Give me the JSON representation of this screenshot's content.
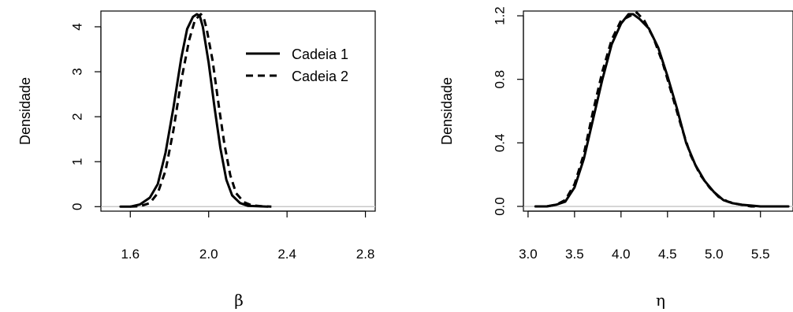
{
  "chart_data": [
    {
      "type": "line",
      "xlabel": "β",
      "ylabel": "Densidade",
      "xlim": [
        1.45,
        2.85
      ],
      "ylim": [
        -0.1,
        4.35
      ],
      "xticks": [
        "1.6",
        "2.0",
        "2.4",
        "2.8"
      ],
      "xtick_values": [
        1.6,
        2.0,
        2.4,
        2.8
      ],
      "yticks": [
        "0",
        "1",
        "2",
        "3",
        "4"
      ],
      "ytick_values": [
        0,
        1,
        2,
        3,
        4
      ],
      "baseline": 0,
      "legend": {
        "position": "top-right",
        "entries": [
          "Cadeia 1",
          "Cadeia 2"
        ]
      },
      "series": [
        {
          "name": "Cadeia 1",
          "style": "solid",
          "x": [
            1.55,
            1.6,
            1.65,
            1.7,
            1.74,
            1.78,
            1.82,
            1.86,
            1.89,
            1.92,
            1.94,
            1.955,
            1.97,
            2.0,
            2.03,
            2.06,
            2.09,
            2.12,
            2.16,
            2.2,
            2.25,
            2.3
          ],
          "y": [
            0.0,
            0.0,
            0.05,
            0.2,
            0.5,
            1.2,
            2.2,
            3.3,
            3.95,
            4.22,
            4.28,
            4.24,
            4.0,
            3.2,
            2.2,
            1.3,
            0.6,
            0.25,
            0.08,
            0.02,
            0.01,
            0.0
          ]
        },
        {
          "name": "Cadeia 2",
          "style": "dashed",
          "x": [
            1.6,
            1.65,
            1.7,
            1.74,
            1.78,
            1.82,
            1.86,
            1.9,
            1.93,
            1.96,
            1.975,
            1.99,
            2.02,
            2.05,
            2.08,
            2.11,
            2.14,
            2.18,
            2.22,
            2.27,
            2.32
          ],
          "y": [
            0.0,
            0.01,
            0.08,
            0.3,
            0.8,
            1.7,
            2.8,
            3.7,
            4.15,
            4.28,
            4.2,
            3.95,
            3.25,
            2.3,
            1.4,
            0.7,
            0.3,
            0.1,
            0.03,
            0.01,
            0.0
          ]
        }
      ]
    },
    {
      "type": "line",
      "xlabel": "η",
      "ylabel": "Densidade",
      "xlim": [
        2.95,
        5.85
      ],
      "ylim": [
        -0.03,
        1.23
      ],
      "xticks": [
        "3.0",
        "3.5",
        "4.0",
        "4.5",
        "5.0",
        "5.5"
      ],
      "xtick_values": [
        3.0,
        3.5,
        4.0,
        4.5,
        5.0,
        5.5
      ],
      "yticks": [
        "0.0",
        "0.4",
        "0.8",
        "1.2"
      ],
      "ytick_values": [
        0.0,
        0.4,
        0.8,
        1.2
      ],
      "baseline": 0,
      "series": [
        {
          "name": "Cadeia 1",
          "style": "solid",
          "x": [
            3.08,
            3.2,
            3.3,
            3.4,
            3.5,
            3.6,
            3.7,
            3.8,
            3.9,
            4.0,
            4.08,
            4.13,
            4.2,
            4.3,
            4.4,
            4.5,
            4.6,
            4.7,
            4.8,
            4.9,
            5.0,
            5.1,
            5.2,
            5.3,
            5.4,
            5.5,
            5.6,
            5.8
          ],
          "y": [
            0.0,
            0.0,
            0.01,
            0.03,
            0.12,
            0.3,
            0.55,
            0.8,
            1.02,
            1.15,
            1.21,
            1.21,
            1.18,
            1.12,
            1.0,
            0.82,
            0.62,
            0.4,
            0.26,
            0.16,
            0.09,
            0.04,
            0.02,
            0.01,
            0.005,
            0.0,
            0.0,
            0.0
          ]
        },
        {
          "name": "Cadeia 2",
          "style": "dashed",
          "x": [
            3.08,
            3.2,
            3.3,
            3.4,
            3.5,
            3.6,
            3.7,
            3.8,
            3.9,
            4.0,
            4.1,
            4.17,
            4.25,
            4.35,
            4.45,
            4.55,
            4.65,
            4.75,
            4.85,
            4.95,
            5.05,
            5.15,
            5.25,
            5.4,
            5.6,
            5.8
          ],
          "y": [
            0.0,
            0.0,
            0.01,
            0.04,
            0.14,
            0.33,
            0.6,
            0.85,
            1.05,
            1.17,
            1.2,
            1.22,
            1.17,
            1.06,
            0.9,
            0.7,
            0.5,
            0.32,
            0.2,
            0.12,
            0.06,
            0.03,
            0.015,
            0.0,
            0.0,
            0.0
          ]
        }
      ]
    }
  ]
}
